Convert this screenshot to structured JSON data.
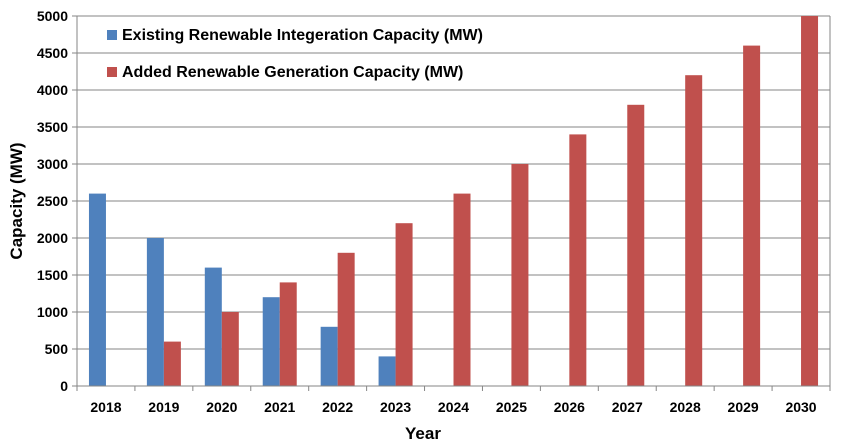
{
  "chart_data": {
    "type": "bar",
    "categories": [
      "2018",
      "2019",
      "2020",
      "2021",
      "2022",
      "2023",
      "2024",
      "2025",
      "2026",
      "2027",
      "2028",
      "2029",
      "2030"
    ],
    "series": [
      {
        "name": "Existing Renewable Integeration Capacity (MW)",
        "color": "#4F81BD",
        "values": [
          2600,
          2000,
          1600,
          1200,
          800,
          400,
          0,
          0,
          0,
          0,
          0,
          0,
          0
        ]
      },
      {
        "name": "Added Renewable Generation Capacity (MW)",
        "color": "#C0504D",
        "values": [
          0,
          600,
          1000,
          1400,
          1800,
          2200,
          2600,
          3000,
          3400,
          3800,
          4200,
          4600,
          5000
        ]
      }
    ],
    "xlabel": "Year",
    "ylabel": "Capacity (MW)",
    "ylim": [
      0,
      5000
    ],
    "yticks": [
      0,
      500,
      1000,
      1500,
      2000,
      2500,
      3000,
      3500,
      4000,
      4500,
      5000
    ],
    "grid": true,
    "legend": "top-left"
  }
}
